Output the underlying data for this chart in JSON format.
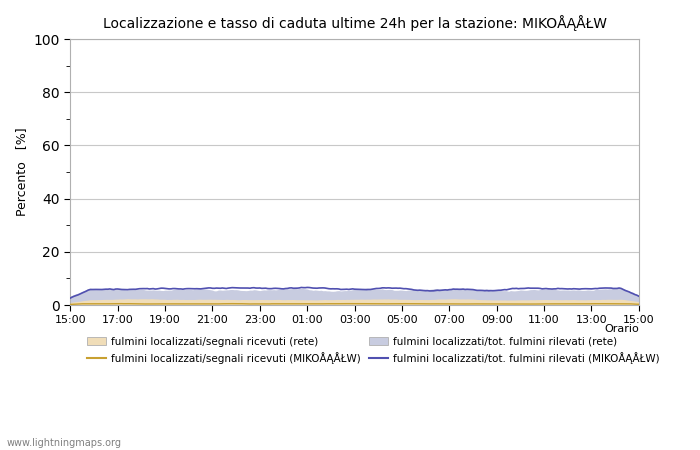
{
  "title": "Localizzazione e tasso di caduta ultime 24h per la stazione: MIKOÅĄÅŁW",
  "ylabel": "Percento   [%]",
  "xlabel_right": "Orario",
  "ylim": [
    0,
    100
  ],
  "yticks_major": [
    0,
    20,
    40,
    60,
    80,
    100
  ],
  "yticks_minor": [
    10,
    30,
    50,
    70,
    90
  ],
  "x_labels": [
    "15:00",
    "17:00",
    "19:00",
    "21:00",
    "23:00",
    "01:00",
    "03:00",
    "05:00",
    "07:00",
    "09:00",
    "11:00",
    "13:00",
    "15:00"
  ],
  "background_color": "#ffffff",
  "plot_bg_color": "#ffffff",
  "grid_color": "#c8c8c8",
  "fill_color_rete_segnali": "#f0ddb8",
  "fill_color_rete_fulmini": "#c8cce0",
  "line_color_station_segnali": "#c8a030",
  "line_color_station_fulmini": "#5050b0",
  "legend_labels": [
    "fulmini localizzati/segnali ricevuti (rete)",
    "fulmini localizzati/segnali ricevuti (MIKOÅĄÅŁW)",
    "fulmini localizzati/tot. fulmini rilevati (rete)",
    "fulmini localizzati/tot. fulmini rilevati (MIKOÅĄÅŁW)"
  ],
  "watermark": "www.lightningmaps.org",
  "n_points": 289
}
